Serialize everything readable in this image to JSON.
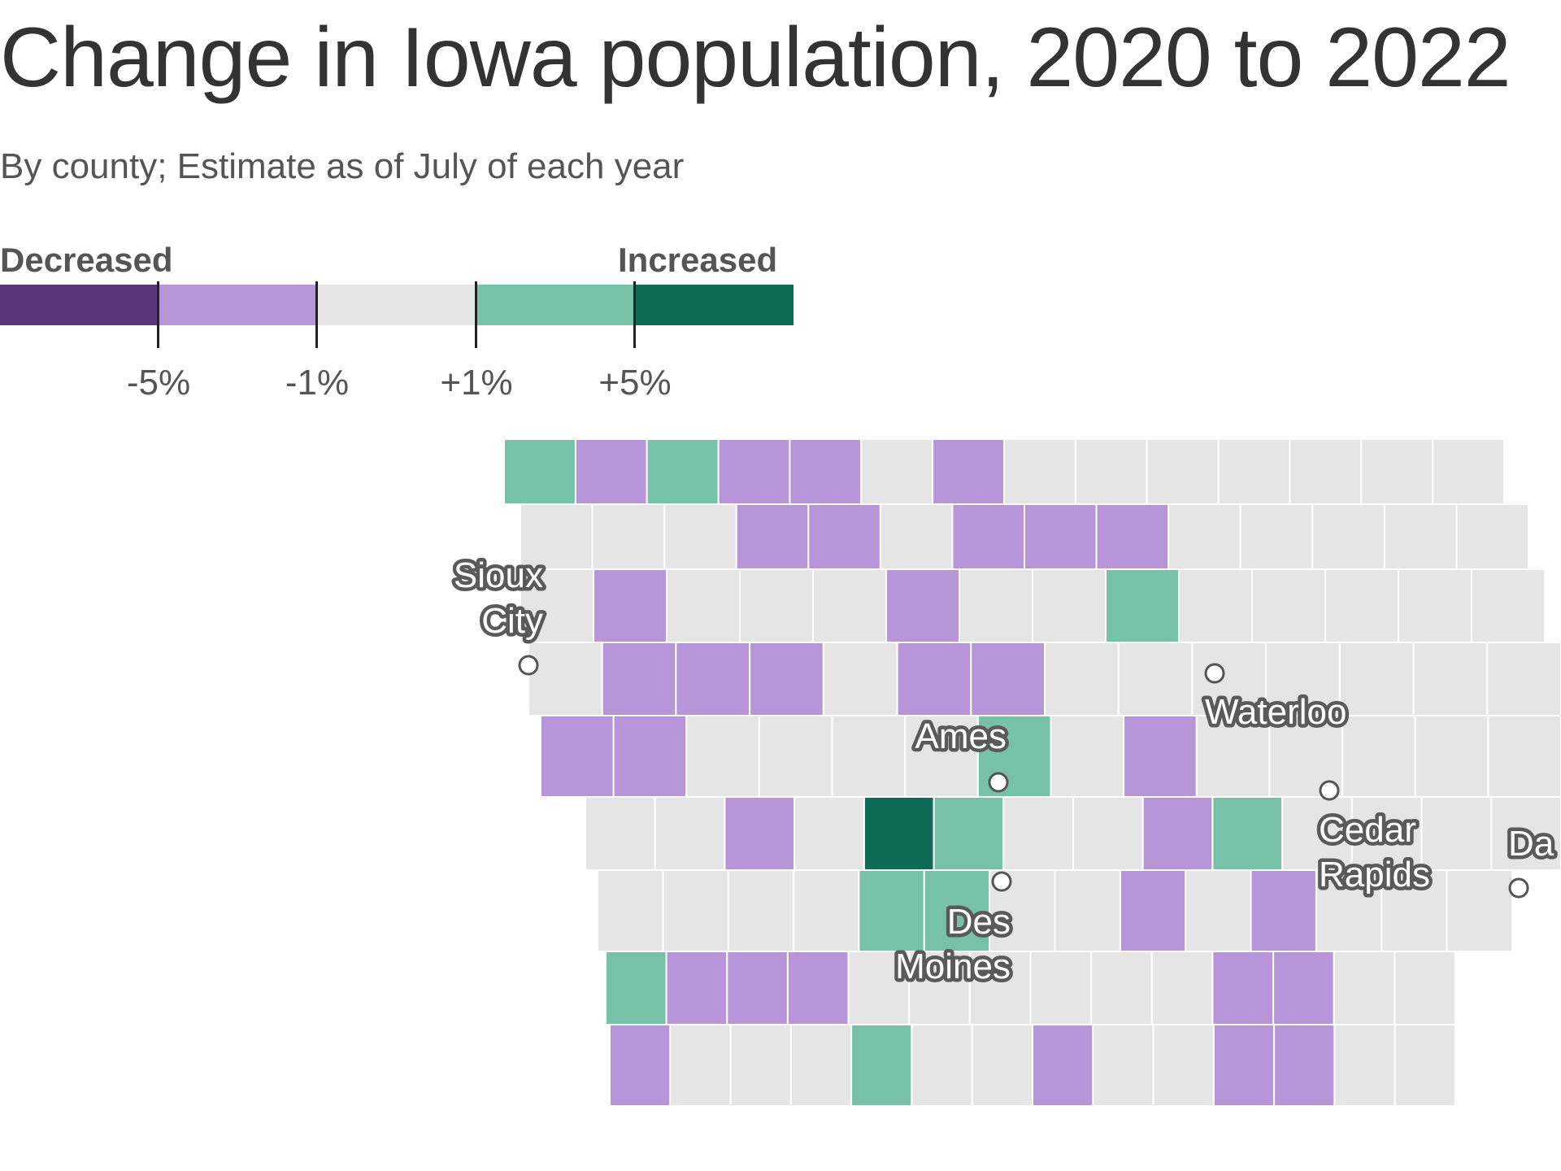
{
  "header": {
    "title": "Change in Iowa population, 2020 to 2022",
    "subtitle": "By county; Estimate as of July of each year"
  },
  "legend": {
    "left_label": "Decreased",
    "right_label": "Increased",
    "bins": [
      {
        "color": "#5a3579",
        "range": "below -5%"
      },
      {
        "color": "#b895d9",
        "range": "-5% to -1%"
      },
      {
        "color": "#e5e5e5",
        "range": "-1% to +1%"
      },
      {
        "color": "#76c1a7",
        "range": "+1% to +5%"
      },
      {
        "color": "#0e6b56",
        "range": "above +5%"
      }
    ],
    "ticks": [
      "-5%",
      "-1%",
      "+1%",
      "+5%"
    ]
  },
  "colors": {
    "decrease_strong": "#5a3579",
    "decrease": "#b895d9",
    "neutral": "#e5e5e5",
    "increase": "#76c1a7",
    "increase_strong": "#0e6b56",
    "county_border": "#ffffff"
  },
  "cities": [
    {
      "name": "Sioux City",
      "lines": [
        "Sioux",
        "City"
      ]
    },
    {
      "name": "Ames",
      "lines": [
        "Ames"
      ]
    },
    {
      "name": "Waterloo",
      "lines": [
        "Waterloo"
      ]
    },
    {
      "name": "Cedar Rapids",
      "lines": [
        "Cedar",
        "Rapids"
      ]
    },
    {
      "name": "Des Moines",
      "lines": [
        "Des",
        "Moines"
      ]
    },
    {
      "name": "Davenport",
      "lines": [
        "Da"
      ]
    }
  ],
  "chart_data": {
    "type": "choropleth",
    "region": "Iowa counties",
    "bins": [
      "< -5%",
      "-5% to -1%",
      "-1% to +1%",
      "+1% to +5%",
      "> +5%"
    ],
    "county_bins": [
      [
        3,
        1,
        3,
        1,
        1,
        2,
        1,
        2,
        2,
        2,
        2,
        2,
        2,
        2
      ],
      [
        2,
        2,
        2,
        1,
        1,
        2,
        1,
        1,
        1,
        2,
        2,
        2,
        2,
        2
      ],
      [
        2,
        1,
        2,
        2,
        2,
        1,
        2,
        2,
        3,
        2,
        2,
        2,
        2,
        2
      ],
      [
        2,
        1,
        1,
        1,
        2,
        1,
        1,
        2,
        2,
        2,
        2,
        2,
        2,
        2
      ],
      [
        1,
        1,
        2,
        2,
        2,
        2,
        3,
        2,
        1,
        2,
        2,
        2,
        2,
        2
      ],
      [
        2,
        2,
        1,
        2,
        4,
        3,
        2,
        2,
        1,
        3,
        2,
        2,
        2,
        2
      ],
      [
        2,
        2,
        2,
        2,
        3,
        3,
        2,
        2,
        1,
        2,
        1,
        2,
        2,
        2
      ],
      [
        3,
        1,
        1,
        1,
        2,
        2,
        2,
        2,
        2,
        2,
        1,
        1,
        2,
        2
      ],
      [
        1,
        2,
        2,
        2,
        3,
        2,
        2,
        1,
        2,
        2,
        1,
        1,
        2,
        2
      ]
    ]
  }
}
